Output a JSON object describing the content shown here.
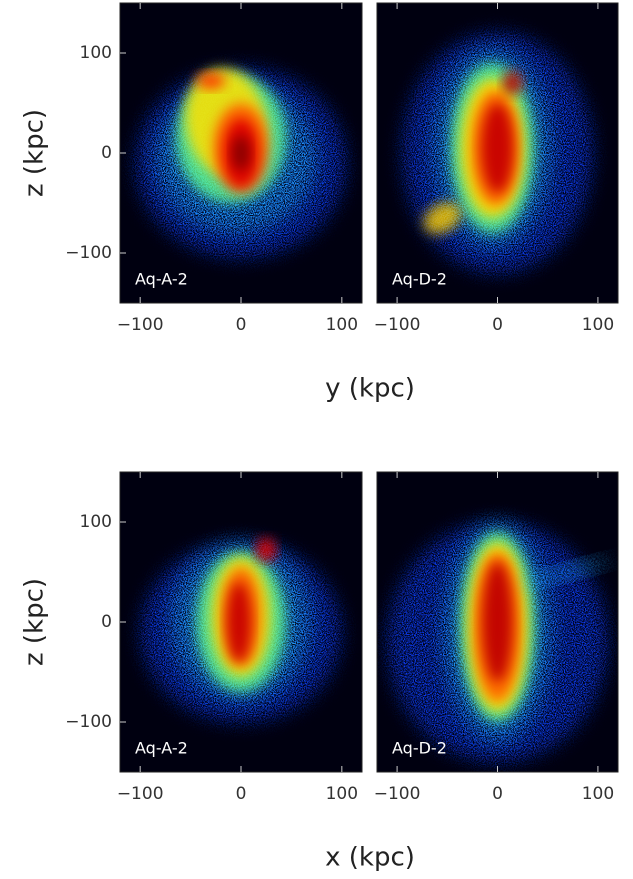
{
  "chart_data": [
    {
      "type": "image",
      "annotation": "Aq-A-2",
      "xlim": [
        -120,
        120
      ],
      "ylim": [
        -150,
        150
      ],
      "xticks": [
        {
          "value": -100,
          "label": "−100"
        },
        0,
        100
      ],
      "yticks": [
        {
          "value": -100,
          "label": "−100"
        },
        0,
        100
      ],
      "ylabel": "z (kpc)",
      "xlabel": "y (kpc)"
    },
    {
      "type": "image",
      "annotation": "Aq-D-2",
      "xlim": [
        -120,
        120
      ],
      "ylim": [
        -150,
        150
      ],
      "xticks": [
        {
          "value": -100,
          "label": "−100"
        },
        0,
        100
      ]
    },
    {
      "type": "image",
      "annotation": "Aq-A-2",
      "xlim": [
        -120,
        120
      ],
      "ylim": [
        -150,
        150
      ],
      "xticks": [
        {
          "value": -100,
          "label": "−100"
        },
        0,
        100
      ],
      "yticks": [
        {
          "value": -100,
          "label": "−100"
        },
        0,
        100
      ],
      "ylabel": "z (kpc)",
      "xlabel": "x (kpc)"
    },
    {
      "type": "image",
      "annotation": "Aq-D-2",
      "xlim": [
        -120,
        120
      ],
      "ylim": [
        -150,
        150
      ],
      "xticks": [
        {
          "value": -100,
          "label": "−100"
        },
        0,
        100
      ]
    }
  ]
}
